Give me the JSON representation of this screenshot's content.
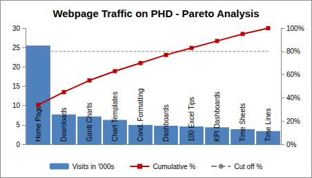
{
  "chart_data": {
    "type": "bar",
    "title": "Webpage Traffic on PHD - Pareto Analysis",
    "categories": [
      "Home Page",
      "Downloads",
      "Gantt Charts",
      "Chart Templates",
      "Cond. Formatting",
      "Dashboards",
      "100 Excel Tips",
      "KPI Dashboards",
      "Time Sheets",
      "Time Lines"
    ],
    "series": [
      {
        "name": "Visits in '000s",
        "type": "bar",
        "color": "#4f81bd",
        "values": [
          25.5,
          7.7,
          7.2,
          6.3,
          5.0,
          4.8,
          4.6,
          4.4,
          3.9,
          3.4
        ]
      },
      {
        "name": "Cumulative %",
        "type": "line",
        "axis": "y2",
        "color": "#c00000",
        "marker": "square",
        "values": [
          34,
          45,
          55,
          63,
          70,
          77,
          83,
          89,
          95,
          100
        ]
      },
      {
        "name": "Cut off %",
        "type": "line",
        "axis": "y2",
        "color": "#808080",
        "line_style": "dashed",
        "values": [
          80,
          80,
          80,
          80,
          80,
          80,
          80,
          80,
          80,
          80
        ]
      }
    ],
    "ylim": [
      0,
      30
    ],
    "yticks": [
      0,
      5,
      10,
      15,
      20,
      25,
      30
    ],
    "y2lim": [
      0,
      100
    ],
    "y2ticks": [
      {
        "value": 0,
        "label": "0%"
      },
      {
        "value": 20,
        "label": "20%"
      },
      {
        "value": 40,
        "label": "40%"
      },
      {
        "value": 60,
        "label": "60%"
      },
      {
        "value": 80,
        "label": "80%"
      },
      {
        "value": 100,
        "label": "100%"
      }
    ],
    "grid": false,
    "legend": "bottom"
  }
}
